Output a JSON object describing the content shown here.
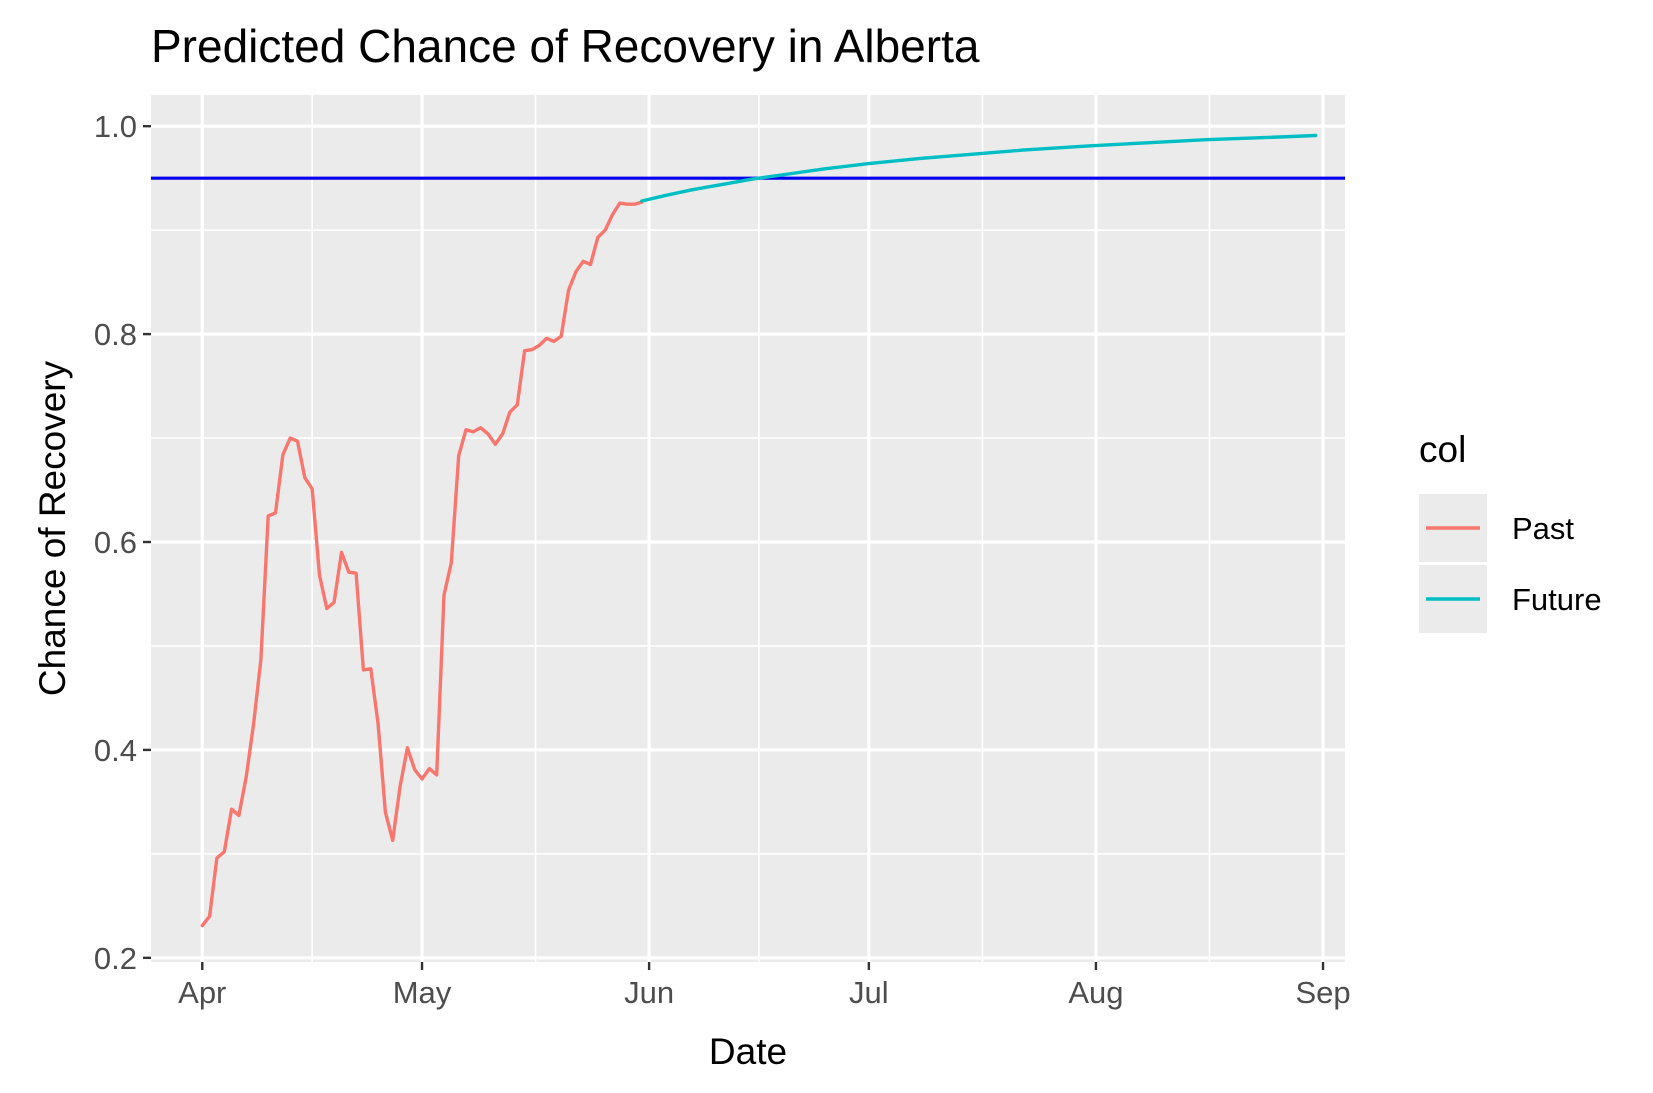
{
  "chart_data": {
    "type": "line",
    "title": "Predicted Chance of Recovery in Alberta",
    "xlabel": "Date",
    "ylabel": "Chance of Recovery",
    "xlim": [
      "2020-03-25",
      "2020-09-04"
    ],
    "ylim": [
      0.196,
      1.03
    ],
    "x_ticks": [
      {
        "date": "2020-04-01",
        "label": "Apr"
      },
      {
        "date": "2020-05-01",
        "label": "May"
      },
      {
        "date": "2020-06-01",
        "label": "Jun"
      },
      {
        "date": "2020-07-01",
        "label": "Jul"
      },
      {
        "date": "2020-08-01",
        "label": "Aug"
      },
      {
        "date": "2020-09-01",
        "label": "Sep"
      }
    ],
    "y_ticks": [
      {
        "value": 0.2,
        "label": "0.2"
      },
      {
        "value": 0.4,
        "label": "0.4"
      },
      {
        "value": 0.6,
        "label": "0.6"
      },
      {
        "value": 0.8,
        "label": "0.8"
      },
      {
        "value": 1.0,
        "label": "1.0"
      }
    ],
    "grid": true,
    "reference_line": {
      "y": 0.95,
      "color": "#0000ee"
    },
    "legend": {
      "title": "col",
      "position": "right"
    },
    "series": [
      {
        "name": "Past",
        "color": "#F8766D",
        "points": [
          [
            "2020-04-01",
            0.231
          ],
          [
            "2020-04-02",
            0.24
          ],
          [
            "2020-04-03",
            0.296
          ],
          [
            "2020-04-04",
            0.302
          ],
          [
            "2020-04-05",
            0.343
          ],
          [
            "2020-04-06",
            0.337
          ],
          [
            "2020-04-07",
            0.374
          ],
          [
            "2020-04-08",
            0.425
          ],
          [
            "2020-04-09",
            0.487
          ],
          [
            "2020-04-10",
            0.625
          ],
          [
            "2020-04-11",
            0.628
          ],
          [
            "2020-04-12",
            0.684
          ],
          [
            "2020-04-13",
            0.7
          ],
          [
            "2020-04-14",
            0.697
          ],
          [
            "2020-04-15",
            0.662
          ],
          [
            "2020-04-16",
            0.651
          ],
          [
            "2020-04-17",
            0.568
          ],
          [
            "2020-04-18",
            0.536
          ],
          [
            "2020-04-19",
            0.542
          ],
          [
            "2020-04-20",
            0.59
          ],
          [
            "2020-04-21",
            0.571
          ],
          [
            "2020-04-22",
            0.57
          ],
          [
            "2020-04-23",
            0.477
          ],
          [
            "2020-04-24",
            0.478
          ],
          [
            "2020-04-25",
            0.425
          ],
          [
            "2020-04-26",
            0.34
          ],
          [
            "2020-04-27",
            0.313
          ],
          [
            "2020-04-28",
            0.365
          ],
          [
            "2020-04-29",
            0.402
          ],
          [
            "2020-04-30",
            0.381
          ],
          [
            "2020-05-01",
            0.372
          ],
          [
            "2020-05-02",
            0.382
          ],
          [
            "2020-05-03",
            0.376
          ],
          [
            "2020-05-04",
            0.549
          ],
          [
            "2020-05-05",
            0.58
          ],
          [
            "2020-05-06",
            0.683
          ],
          [
            "2020-05-07",
            0.708
          ],
          [
            "2020-05-08",
            0.706
          ],
          [
            "2020-05-09",
            0.71
          ],
          [
            "2020-05-10",
            0.704
          ],
          [
            "2020-05-11",
            0.694
          ],
          [
            "2020-05-12",
            0.704
          ],
          [
            "2020-05-13",
            0.725
          ],
          [
            "2020-05-14",
            0.732
          ],
          [
            "2020-05-15",
            0.784
          ],
          [
            "2020-05-16",
            0.785
          ],
          [
            "2020-05-17",
            0.789
          ],
          [
            "2020-05-18",
            0.796
          ],
          [
            "2020-05-19",
            0.793
          ],
          [
            "2020-05-20",
            0.798
          ],
          [
            "2020-05-21",
            0.842
          ],
          [
            "2020-05-22",
            0.86
          ],
          [
            "2020-05-23",
            0.87
          ],
          [
            "2020-05-24",
            0.867
          ],
          [
            "2020-05-25",
            0.893
          ],
          [
            "2020-05-26",
            0.9
          ],
          [
            "2020-05-27",
            0.915
          ],
          [
            "2020-05-28",
            0.926
          ],
          [
            "2020-05-29",
            0.925
          ],
          [
            "2020-05-30",
            0.925
          ],
          [
            "2020-05-31",
            0.927
          ]
        ]
      },
      {
        "name": "Future",
        "color": "#00BFC4",
        "points": [
          [
            "2020-05-31",
            0.928
          ],
          [
            "2020-06-03",
            0.933
          ],
          [
            "2020-06-07",
            0.939
          ],
          [
            "2020-06-11",
            0.944
          ],
          [
            "2020-06-15",
            0.949
          ],
          [
            "2020-06-20",
            0.954
          ],
          [
            "2020-06-25",
            0.959
          ],
          [
            "2020-07-01",
            0.964
          ],
          [
            "2020-07-08",
            0.969
          ],
          [
            "2020-07-15",
            0.973
          ],
          [
            "2020-07-22",
            0.977
          ],
          [
            "2020-07-31",
            0.981
          ],
          [
            "2020-08-08",
            0.984
          ],
          [
            "2020-08-16",
            0.987
          ],
          [
            "2020-08-24",
            0.989
          ],
          [
            "2020-08-31",
            0.991
          ]
        ]
      }
    ]
  }
}
